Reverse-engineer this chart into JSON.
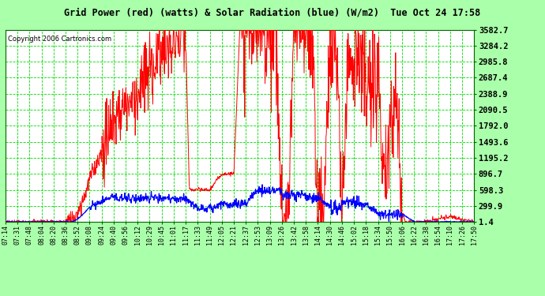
{
  "title": "Grid Power (red) (watts) & Solar Radiation (blue) (W/m2)  Tue Oct 24 17:58",
  "copyright": "Copyright 2006 Cartronics.com",
  "outer_bg": "#aaffaa",
  "plot_bg": "#ffffff",
  "grid_color": "#00dd00",
  "red_color": "#ff0000",
  "blue_color": "#0000ff",
  "yticks": [
    1.4,
    299.9,
    598.3,
    896.7,
    1195.2,
    1493.6,
    1792.0,
    2090.5,
    2388.9,
    2687.4,
    2985.8,
    3284.2,
    3582.7
  ],
  "ymin": 1.4,
  "ymax": 3582.7,
  "xtick_labels": [
    "07:14",
    "07:31",
    "07:48",
    "08:04",
    "08:20",
    "08:36",
    "08:52",
    "09:08",
    "09:24",
    "09:40",
    "09:56",
    "10:12",
    "10:29",
    "10:45",
    "11:01",
    "11:17",
    "11:33",
    "11:49",
    "12:05",
    "12:21",
    "12:37",
    "12:53",
    "13:09",
    "13:26",
    "13:42",
    "13:58",
    "14:14",
    "14:30",
    "14:46",
    "15:02",
    "15:18",
    "15:34",
    "15:50",
    "16:06",
    "16:22",
    "16:38",
    "16:54",
    "17:10",
    "17:26",
    "17:50"
  ]
}
